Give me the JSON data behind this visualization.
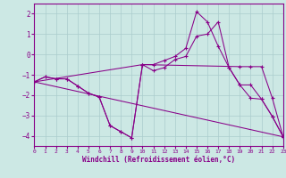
{
  "xlabel": "Windchill (Refroidissement éolien,°C)",
  "bg_color": "#cce8e4",
  "line_color": "#880088",
  "grid_color": "#aacccc",
  "xlim": [
    0,
    23
  ],
  "ylim": [
    -4.5,
    2.5
  ],
  "yticks": [
    -4,
    -3,
    -2,
    -1,
    0,
    1,
    2
  ],
  "xticks": [
    0,
    1,
    2,
    3,
    4,
    5,
    6,
    7,
    8,
    9,
    10,
    11,
    12,
    13,
    14,
    15,
    16,
    17,
    18,
    19,
    20,
    21,
    22,
    23
  ],
  "series": [
    {
      "x": [
        0,
        1,
        2,
        3,
        4,
        5,
        6,
        7,
        8,
        9,
        10,
        11,
        12,
        13,
        14,
        15,
        16,
        17,
        18,
        19,
        20,
        21,
        22,
        23
      ],
      "y": [
        -1.35,
        -1.1,
        -1.2,
        -1.2,
        -1.55,
        -1.9,
        -2.1,
        -3.5,
        -3.8,
        -4.1,
        -0.5,
        -0.5,
        -0.3,
        -0.1,
        0.3,
        2.1,
        1.6,
        0.4,
        -0.65,
        -1.5,
        -2.15,
        -2.2,
        -3.05,
        -4.05
      ]
    },
    {
      "x": [
        0,
        23
      ],
      "y": [
        -1.35,
        -4.05
      ]
    },
    {
      "x": [
        0,
        10,
        19,
        20,
        21,
        22,
        23
      ],
      "y": [
        -1.35,
        -0.5,
        -0.6,
        -0.6,
        -0.6,
        -2.15,
        -4.05
      ]
    },
    {
      "x": [
        0,
        1,
        2,
        3,
        4,
        5,
        6,
        7,
        8,
        9,
        10,
        11,
        12,
        13,
        14,
        15,
        16,
        17,
        18,
        19,
        20,
        21,
        22,
        23
      ],
      "y": [
        -1.35,
        -1.1,
        -1.2,
        -1.2,
        -1.55,
        -1.9,
        -2.1,
        -3.5,
        -3.8,
        -4.1,
        -0.5,
        -0.8,
        -0.65,
        -0.25,
        -0.1,
        0.9,
        1.0,
        1.6,
        -0.65,
        -1.5,
        -1.5,
        -2.2,
        -3.05,
        -4.05
      ]
    }
  ]
}
